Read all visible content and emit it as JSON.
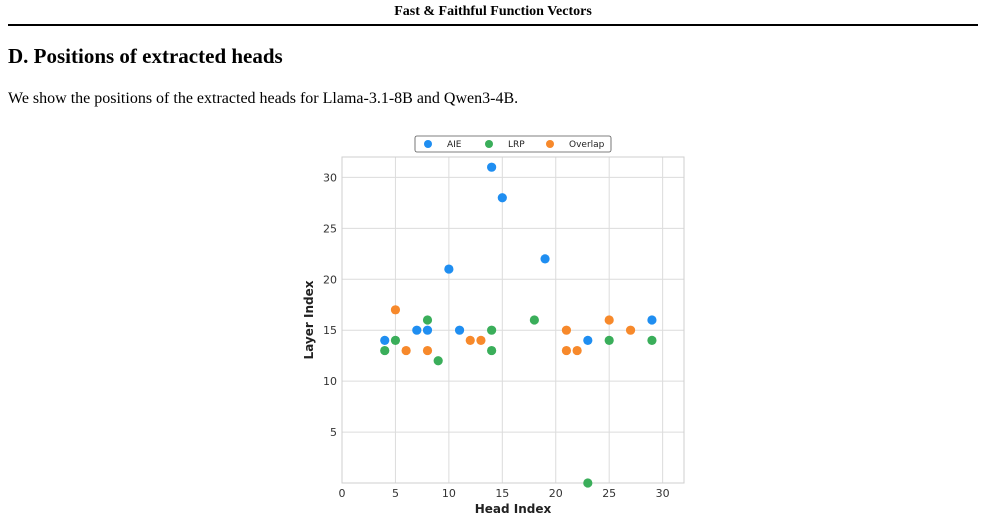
{
  "header": {
    "running_title": "Fast & Faithful Function Vectors"
  },
  "section": {
    "heading": "D. Positions of extracted heads",
    "body": "We show the positions of the extracted heads for Llama-3.1-8B and Qwen3-4B."
  },
  "chart_data": {
    "type": "scatter",
    "xlabel": "Head Index",
    "ylabel": "Layer Index",
    "xlim": [
      0,
      32
    ],
    "ylim": [
      0,
      32
    ],
    "xticks": [
      0,
      5,
      10,
      15,
      20,
      25,
      30
    ],
    "yticks": [
      5,
      10,
      15,
      20,
      25,
      30
    ],
    "grid": true,
    "legend_position": "top-center",
    "series": [
      {
        "name": "AIE",
        "color": "#1f8ef1",
        "points": [
          [
            4,
            14
          ],
          [
            7,
            15
          ],
          [
            8,
            15
          ],
          [
            10,
            21
          ],
          [
            11,
            15
          ],
          [
            14,
            31
          ],
          [
            15,
            28
          ],
          [
            19,
            22
          ],
          [
            23,
            14
          ],
          [
            29,
            16
          ]
        ]
      },
      {
        "name": "LRP",
        "color": "#3aae5a",
        "points": [
          [
            4,
            13
          ],
          [
            5,
            14
          ],
          [
            8,
            16
          ],
          [
            9,
            12
          ],
          [
            14,
            15
          ],
          [
            14,
            13
          ],
          [
            18,
            16
          ],
          [
            23,
            0
          ],
          [
            25,
            14
          ],
          [
            29,
            14
          ]
        ]
      },
      {
        "name": "Overlap",
        "color": "#f7892b",
        "points": [
          [
            5,
            17
          ],
          [
            6,
            13
          ],
          [
            8,
            13
          ],
          [
            12,
            14
          ],
          [
            13,
            14
          ],
          [
            21,
            15
          ],
          [
            21,
            13
          ],
          [
            22,
            13
          ],
          [
            25,
            16
          ],
          [
            27,
            15
          ]
        ]
      }
    ]
  }
}
